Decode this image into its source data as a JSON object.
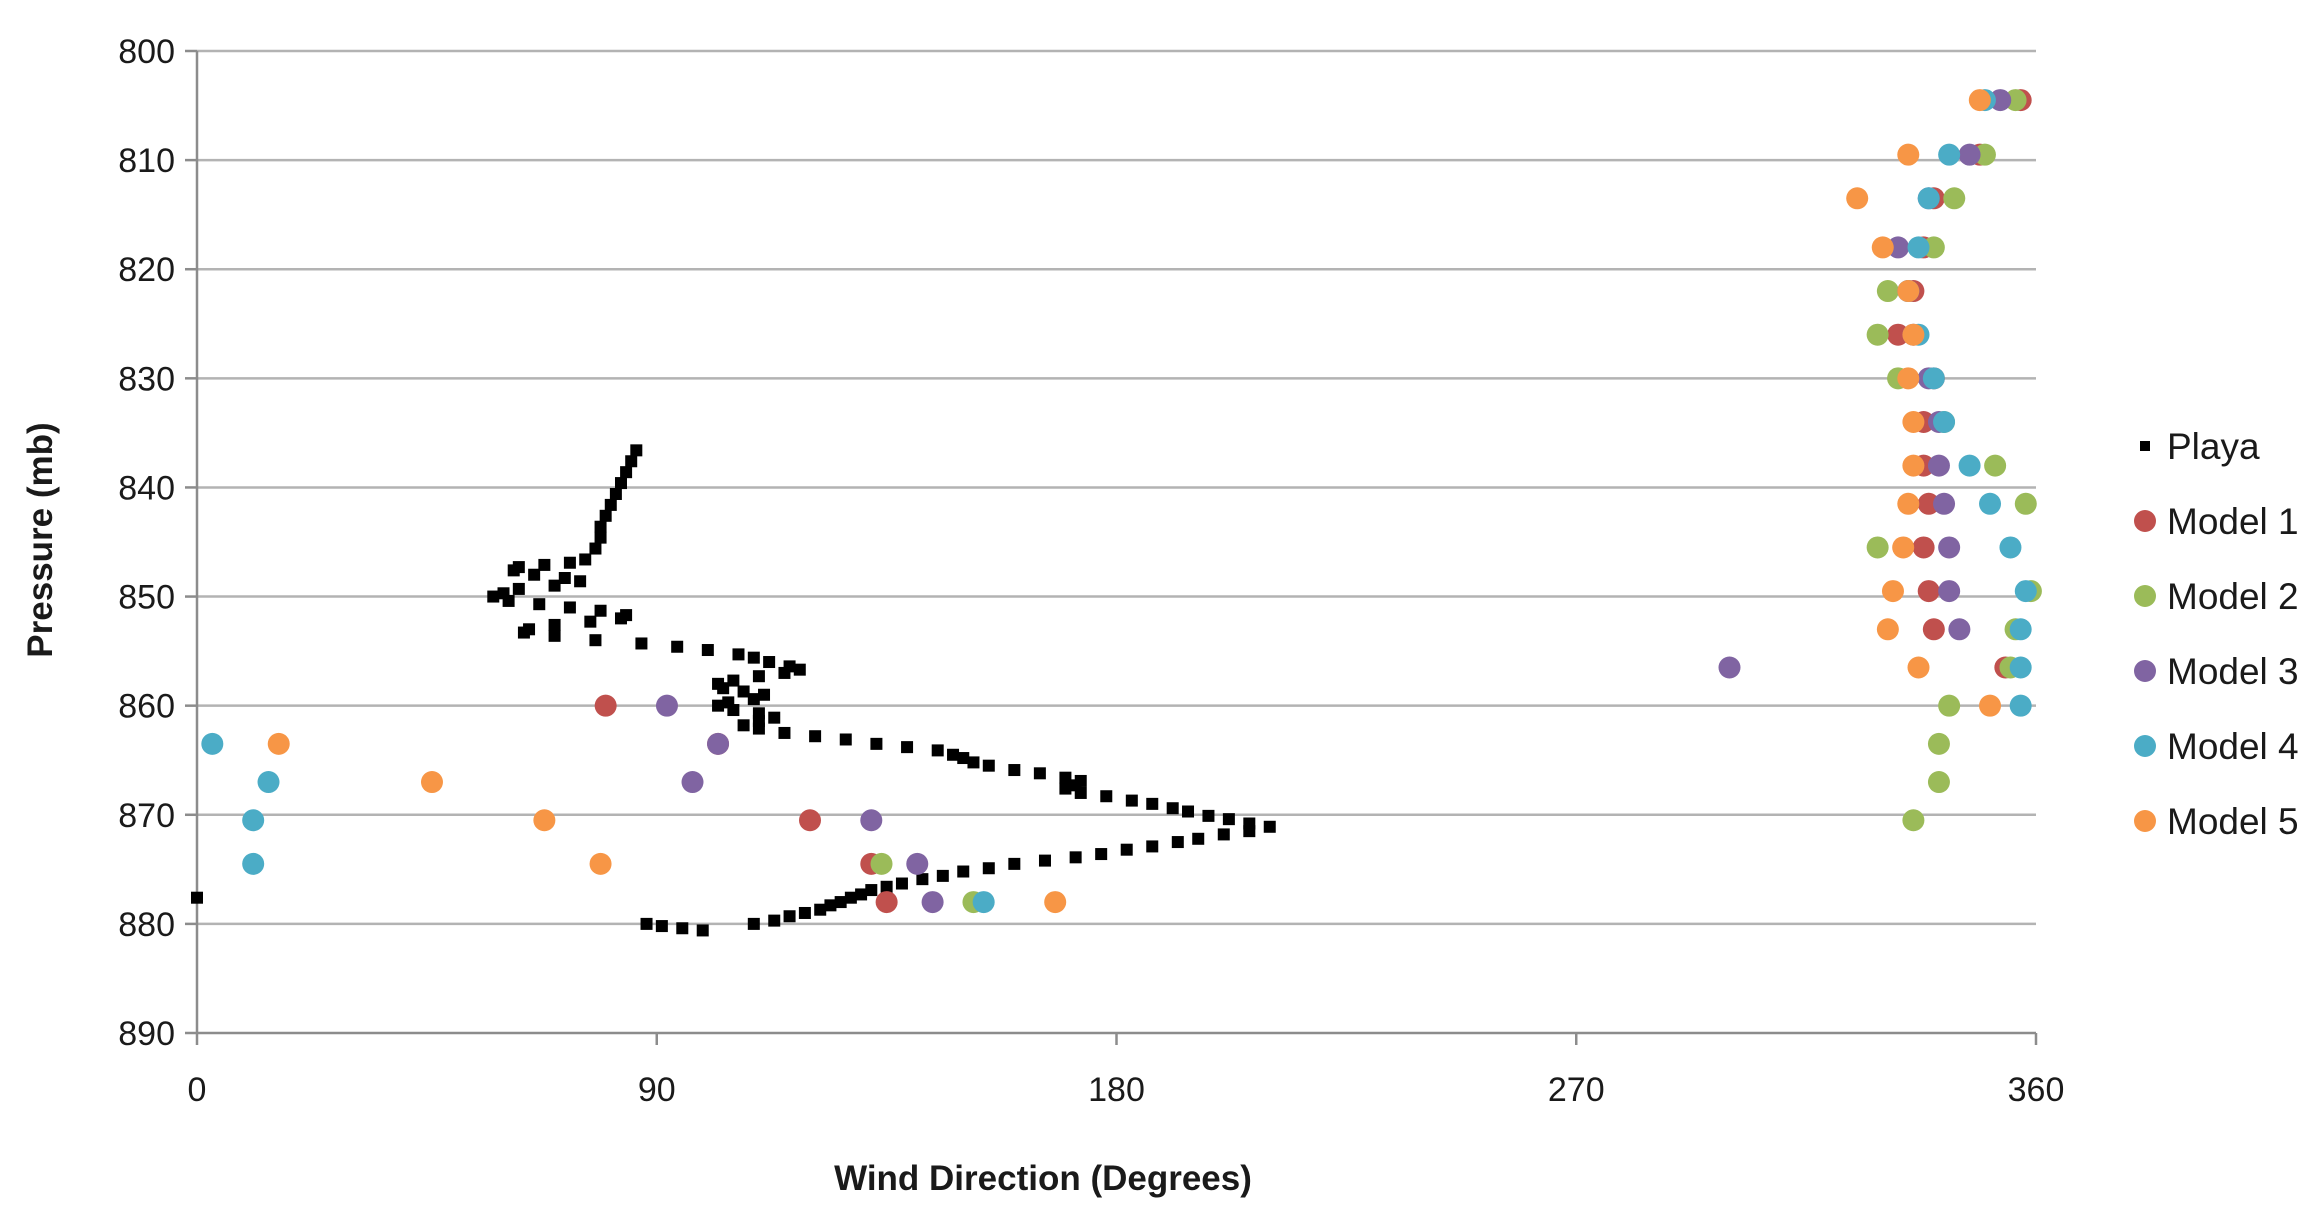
{
  "chart_data": {
    "type": "scatter",
    "xlabel": "Wind Direction (Degrees)",
    "ylabel": "Pressure (mb)",
    "xlim": [
      0,
      360
    ],
    "ylim": [
      800,
      890
    ],
    "y_inverted": true,
    "x_ticks": [
      "0",
      "90",
      "180",
      "270",
      "360"
    ],
    "y_ticks": [
      "800",
      "810",
      "820",
      "830",
      "840",
      "850",
      "860",
      "870",
      "880",
      "890"
    ],
    "grid": "horizontal",
    "legend_position": "right",
    "series": [
      {
        "name": "Playa",
        "color": "#000000",
        "marker": "square",
        "points": [
          [
            0,
            877.6
          ],
          [
            86,
            836.6
          ],
          [
            85,
            837.6
          ],
          [
            84,
            838.6
          ],
          [
            83,
            839.6
          ],
          [
            82,
            840.6
          ],
          [
            81,
            841.6
          ],
          [
            80,
            842.6
          ],
          [
            79,
            843.6
          ],
          [
            79,
            844.6
          ],
          [
            78,
            845.6
          ],
          [
            76,
            846.6
          ],
          [
            73,
            846.9
          ],
          [
            68,
            847.1
          ],
          [
            63,
            847.3
          ],
          [
            62,
            847.6
          ],
          [
            66,
            848.0
          ],
          [
            72,
            848.3
          ],
          [
            75,
            848.6
          ],
          [
            70,
            849.0
          ],
          [
            63,
            849.3
          ],
          [
            60,
            849.7
          ],
          [
            58,
            850.0
          ],
          [
            61,
            850.4
          ],
          [
            67,
            850.7
          ],
          [
            73,
            851.0
          ],
          [
            79,
            851.3
          ],
          [
            84,
            851.7
          ],
          [
            83,
            852.0
          ],
          [
            77,
            852.3
          ],
          [
            70,
            852.6
          ],
          [
            65,
            853.0
          ],
          [
            64,
            853.3
          ],
          [
            70,
            853.6
          ],
          [
            78,
            854.0
          ],
          [
            87,
            854.3
          ],
          [
            94,
            854.6
          ],
          [
            100,
            854.9
          ],
          [
            106,
            855.3
          ],
          [
            109,
            855.6
          ],
          [
            112,
            856.0
          ],
          [
            116,
            856.4
          ],
          [
            118,
            856.7
          ],
          [
            115,
            857.0
          ],
          [
            110,
            857.3
          ],
          [
            105,
            857.7
          ],
          [
            102,
            858.0
          ],
          [
            103,
            858.4
          ],
          [
            107,
            858.7
          ],
          [
            111,
            859.0
          ],
          [
            109,
            859.4
          ],
          [
            104,
            859.7
          ],
          [
            102,
            860.0
          ],
          [
            105,
            860.4
          ],
          [
            110,
            860.7
          ],
          [
            113,
            861.1
          ],
          [
            110,
            861.4
          ],
          [
            107,
            861.8
          ],
          [
            110,
            862.1
          ],
          [
            115,
            862.5
          ],
          [
            121,
            862.8
          ],
          [
            127,
            863.1
          ],
          [
            133,
            863.5
          ],
          [
            139,
            863.8
          ],
          [
            145,
            864.1
          ],
          [
            148,
            864.5
          ],
          [
            150,
            864.8
          ],
          [
            152,
            865.2
          ],
          [
            155,
            865.5
          ],
          [
            160,
            865.9
          ],
          [
            165,
            866.2
          ],
          [
            170,
            866.6
          ],
          [
            173,
            866.9
          ],
          [
            172,
            867.3
          ],
          [
            170,
            867.6
          ],
          [
            173,
            868.0
          ],
          [
            178,
            868.3
          ],
          [
            183,
            868.7
          ],
          [
            187,
            869.0
          ],
          [
            191,
            869.4
          ],
          [
            194,
            869.7
          ],
          [
            198,
            870.1
          ],
          [
            202,
            870.4
          ],
          [
            206,
            870.8
          ],
          [
            210,
            871.1
          ],
          [
            206,
            871.5
          ],
          [
            201,
            871.8
          ],
          [
            196,
            872.2
          ],
          [
            192,
            872.5
          ],
          [
            187,
            872.9
          ],
          [
            182,
            873.2
          ],
          [
            177,
            873.6
          ],
          [
            172,
            873.9
          ],
          [
            166,
            874.2
          ],
          [
            160,
            874.5
          ],
          [
            155,
            874.9
          ],
          [
            150,
            875.2
          ],
          [
            146,
            875.6
          ],
          [
            142,
            875.9
          ],
          [
            138,
            876.3
          ],
          [
            135,
            876.6
          ],
          [
            132,
            876.9
          ],
          [
            130,
            877.3
          ],
          [
            128,
            877.6
          ],
          [
            126,
            878.0
          ],
          [
            124,
            878.3
          ],
          [
            122,
            878.7
          ],
          [
            119,
            879.0
          ],
          [
            116,
            879.3
          ],
          [
            113,
            879.7
          ],
          [
            109,
            880.0
          ],
          [
            88,
            880.0
          ],
          [
            91,
            880.2
          ],
          [
            95,
            880.4
          ],
          [
            99,
            880.6
          ]
        ]
      },
      {
        "name": "Model 1",
        "color": "#c0504d",
        "marker": "circle",
        "points": [
          [
            357,
            804.5
          ],
          [
            349,
            809.5
          ],
          [
            340,
            813.5
          ],
          [
            338,
            818.0
          ],
          [
            336,
            822.0
          ],
          [
            333,
            826.0
          ],
          [
            340,
            830.0
          ],
          [
            338,
            834.0
          ],
          [
            338,
            838.0
          ],
          [
            339,
            841.5
          ],
          [
            338,
            845.5
          ],
          [
            339,
            849.5
          ],
          [
            340,
            853.0
          ],
          [
            354,
            856.5
          ],
          [
            80,
            860.0
          ],
          [
            102,
            863.5
          ],
          [
            120,
            870.5
          ],
          [
            132,
            874.5
          ],
          [
            135,
            878.0
          ]
        ]
      },
      {
        "name": "Model 2",
        "color": "#9bbb59",
        "marker": "circle",
        "points": [
          [
            356,
            804.5
          ],
          [
            350,
            809.5
          ],
          [
            344,
            813.5
          ],
          [
            340,
            818.0
          ],
          [
            331,
            822.0
          ],
          [
            329,
            826.0
          ],
          [
            333,
            830.0
          ],
          [
            342,
            834.0
          ],
          [
            352,
            838.0
          ],
          [
            358,
            841.5
          ],
          [
            329,
            845.5
          ],
          [
            359,
            849.5
          ],
          [
            356,
            853.0
          ],
          [
            355,
            856.5
          ],
          [
            343,
            860.0
          ],
          [
            341,
            863.5
          ],
          [
            341,
            867.0
          ],
          [
            336,
            870.5
          ],
          [
            134,
            874.5
          ],
          [
            152,
            878.0
          ]
        ]
      },
      {
        "name": "Model 3",
        "color": "#8064a2",
        "marker": "circle",
        "points": [
          [
            353,
            804.5
          ],
          [
            347,
            809.5
          ],
          [
            339,
            813.5
          ],
          [
            333,
            818.0
          ],
          [
            335,
            822.0
          ],
          [
            336,
            826.0
          ],
          [
            339,
            830.0
          ],
          [
            341,
            834.0
          ],
          [
            341,
            838.0
          ],
          [
            342,
            841.5
          ],
          [
            343,
            845.5
          ],
          [
            343,
            849.5
          ],
          [
            345,
            853.0
          ],
          [
            300,
            856.5
          ],
          [
            92,
            860.0
          ],
          [
            102,
            863.5
          ],
          [
            97,
            867.0
          ],
          [
            132,
            870.5
          ],
          [
            141,
            874.5
          ],
          [
            144,
            878.0
          ]
        ]
      },
      {
        "name": "Model 4",
        "color": "#4bacc6",
        "marker": "circle",
        "points": [
          [
            350,
            804.5
          ],
          [
            343,
            809.5
          ],
          [
            339,
            813.5
          ],
          [
            337,
            818.0
          ],
          [
            335,
            822.0
          ],
          [
            337,
            826.0
          ],
          [
            340,
            830.0
          ],
          [
            342,
            834.0
          ],
          [
            347,
            838.0
          ],
          [
            351,
            841.5
          ],
          [
            355,
            845.5
          ],
          [
            358,
            849.5
          ],
          [
            357,
            853.0
          ],
          [
            357,
            856.5
          ],
          [
            357,
            860.0
          ],
          [
            3,
            863.5
          ],
          [
            14,
            867.0
          ],
          [
            11,
            870.5
          ],
          [
            11,
            874.5
          ],
          [
            154,
            878.0
          ]
        ]
      },
      {
        "name": "Model 5",
        "color": "#f79646",
        "marker": "circle",
        "points": [
          [
            349,
            804.5
          ],
          [
            335,
            809.5
          ],
          [
            325,
            813.5
          ],
          [
            330,
            818.0
          ],
          [
            335,
            822.0
          ],
          [
            336,
            826.0
          ],
          [
            335,
            830.0
          ],
          [
            336,
            834.0
          ],
          [
            336,
            838.0
          ],
          [
            335,
            841.5
          ],
          [
            334,
            845.5
          ],
          [
            332,
            849.5
          ],
          [
            331,
            853.0
          ],
          [
            337,
            856.5
          ],
          [
            351,
            860.0
          ],
          [
            16,
            863.5
          ],
          [
            46,
            867.0
          ],
          [
            68,
            870.5
          ],
          [
            79,
            874.5
          ],
          [
            168,
            878.0
          ]
        ]
      }
    ]
  }
}
